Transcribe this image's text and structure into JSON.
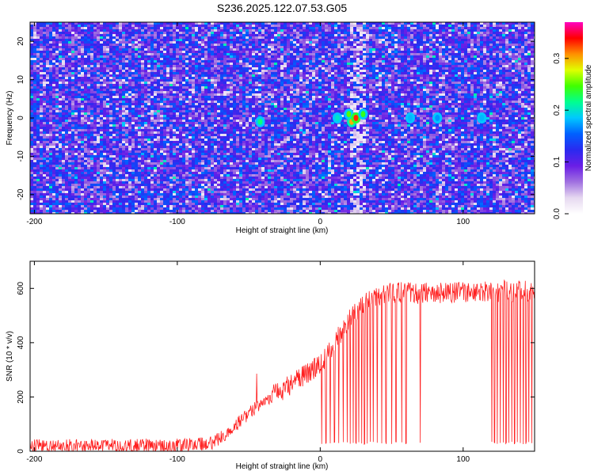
{
  "chart_data": [
    {
      "type": "heatmap",
      "title": "S236.2025.122.07.53.G05",
      "xlabel": "Height of straight line (km)",
      "ylabel": "Frequency (Hz)",
      "xlim": [
        -203,
        150
      ],
      "ylim": [
        -25,
        25
      ],
      "x_ticks": [
        -200,
        -100,
        0,
        100
      ],
      "y_ticks": [
        -20,
        -10,
        0,
        10,
        20
      ],
      "colorbar": {
        "label": "Normalized spectral amplitude",
        "range": [
          0,
          0.37
        ],
        "ticks": [
          0.0,
          0.1,
          0.2,
          0.3
        ],
        "colormap": [
          "#ffffff",
          "#e6d8f0",
          "#a070e0",
          "#6a1ee6",
          "#2a2af0",
          "#0060ff",
          "#00c8ff",
          "#00ff90",
          "#40ff00",
          "#e0ff00",
          "#ff9000",
          "#ff0000",
          "#ff00c0"
        ]
      },
      "hotspots": [
        {
          "x": -42,
          "y": -1,
          "value": 0.22
        },
        {
          "x": 12,
          "y": 0,
          "value": 0.2
        },
        {
          "x": 20,
          "y": 1,
          "value": 0.25
        },
        {
          "x": 22,
          "y": -1,
          "value": 0.3
        },
        {
          "x": 25,
          "y": 0,
          "value": 0.33
        },
        {
          "x": 30,
          "y": 1,
          "value": 0.24
        },
        {
          "x": 63,
          "y": 0,
          "value": 0.18
        },
        {
          "x": 82,
          "y": 0,
          "value": 0.17
        },
        {
          "x": 113,
          "y": 0,
          "value": 0.18
        }
      ]
    },
    {
      "type": "line",
      "xlabel": "Height of straight line (km)",
      "ylabel": "SNR (10 * v/v)",
      "xlim": [
        -203,
        150
      ],
      "ylim": [
        0,
        700
      ],
      "x_ticks": [
        -200,
        -100,
        0,
        100
      ],
      "y_ticks": [
        0,
        200,
        400,
        600
      ],
      "color": "#ff2020",
      "trend": {
        "x": [
          -203,
          -100,
          -75,
          -60,
          -50,
          -40,
          -30,
          -20,
          -10,
          0,
          10,
          20,
          30,
          40,
          50,
          60,
          80,
          100,
          120,
          150
        ],
        "y": [
          20,
          22,
          30,
          90,
          140,
          180,
          215,
          250,
          285,
          320,
          400,
          480,
          540,
          565,
          580,
          585,
          580,
          585,
          590,
          590
        ]
      },
      "noise_amplitude": 25,
      "dropouts_x": [
        1,
        4,
        7,
        10,
        13,
        16,
        19,
        21,
        23,
        25,
        27,
        29,
        31,
        33,
        35,
        37,
        40,
        43,
        46,
        50,
        53,
        57,
        60,
        70,
        120,
        122,
        124,
        126,
        128,
        130,
        132,
        134,
        136,
        138,
        140,
        142,
        144,
        146,
        148
      ],
      "dropout_level": 25
    }
  ]
}
